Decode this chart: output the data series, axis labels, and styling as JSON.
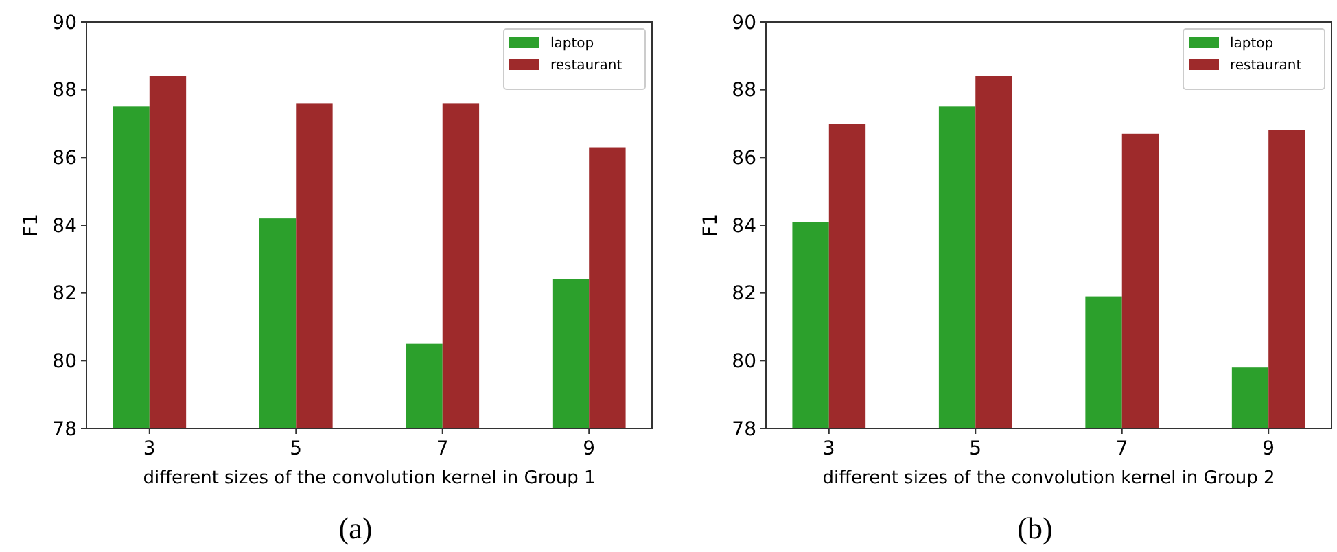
{
  "chart_data": [
    {
      "type": "bar",
      "categories": [
        "3",
        "5",
        "7",
        "9"
      ],
      "xlabel": "different sizes of the convolution kernel in Group 1",
      "ylabel": "F1",
      "ylim": [
        78,
        90
      ],
      "yticks": [
        78,
        80,
        82,
        84,
        86,
        88,
        90
      ],
      "legend": "top right",
      "annotations": [
        "(a)"
      ],
      "series": [
        {
          "name": "laptop",
          "color": "#2ca02c",
          "values": [
            87.5,
            84.2,
            80.5,
            82.4
          ]
        },
        {
          "name": "restaurant",
          "color": "#9e2a2b",
          "values": [
            88.4,
            87.6,
            87.6,
            86.3
          ]
        }
      ]
    },
    {
      "type": "bar",
      "categories": [
        "3",
        "5",
        "7",
        "9"
      ],
      "xlabel": "different sizes of the convolution kernel in Group 2",
      "ylabel": "F1",
      "ylim": [
        78,
        90
      ],
      "yticks": [
        78,
        80,
        82,
        84,
        86,
        88,
        90
      ],
      "legend": "top right",
      "annotations": [
        "(b)"
      ],
      "series": [
        {
          "name": "laptop",
          "color": "#2ca02c",
          "values": [
            84.1,
            87.5,
            81.9,
            79.8
          ]
        },
        {
          "name": "restaurant",
          "color": "#9e2a2b",
          "values": [
            87.0,
            88.4,
            86.7,
            86.8
          ]
        }
      ]
    }
  ]
}
